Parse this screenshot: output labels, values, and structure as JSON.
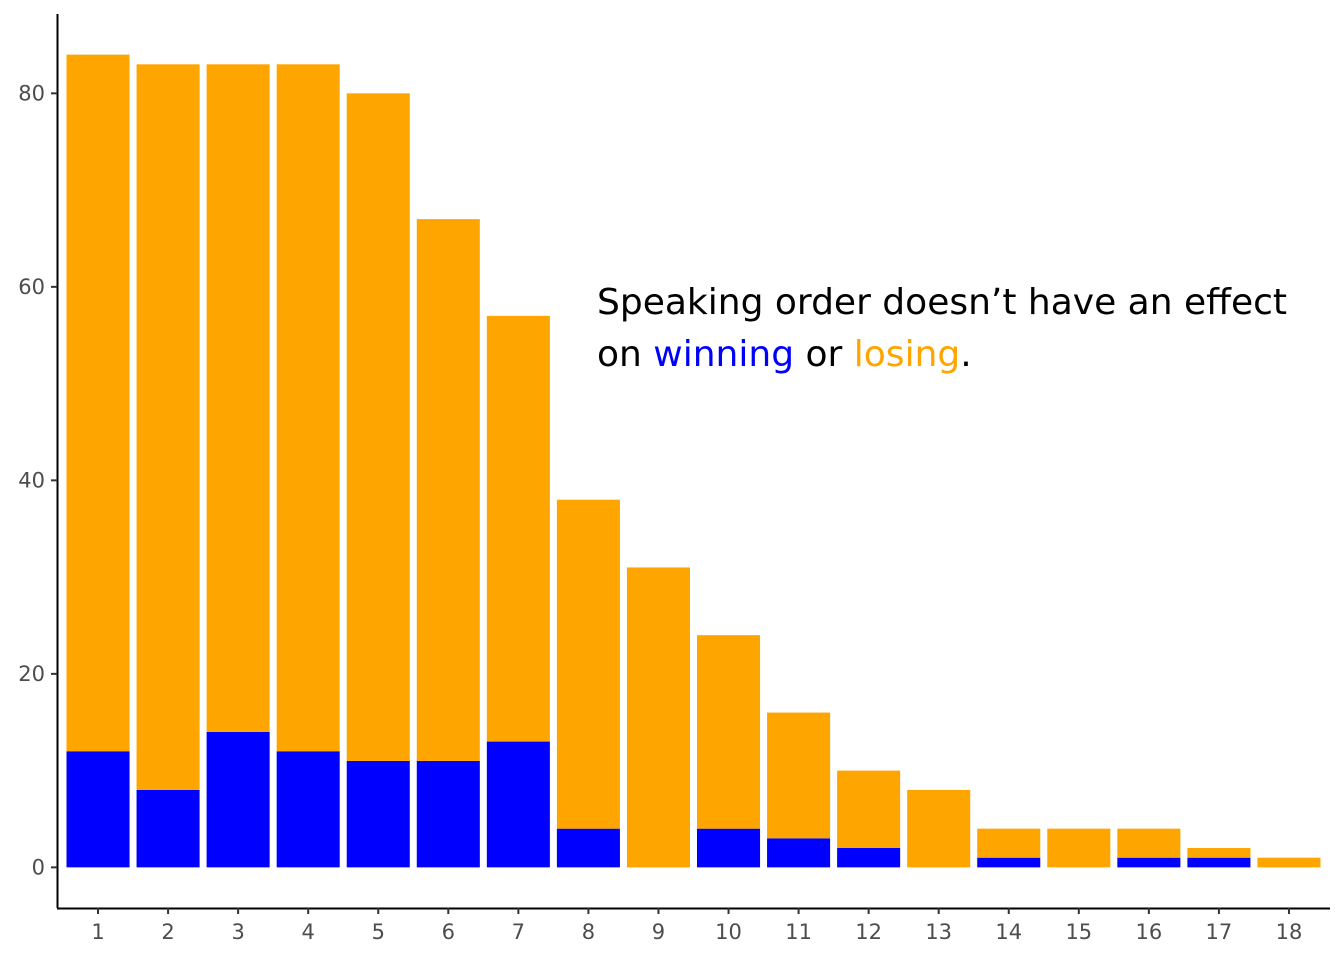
{
  "chart_data": {
    "type": "bar",
    "stacked": true,
    "categories": [
      "1",
      "2",
      "3",
      "4",
      "5",
      "6",
      "7",
      "8",
      "9",
      "10",
      "11",
      "12",
      "13",
      "14",
      "15",
      "16",
      "17",
      "18"
    ],
    "series": [
      {
        "key": "winning",
        "color": "#0000ff",
        "values": [
          12,
          8,
          14,
          12,
          11,
          11,
          13,
          4,
          0,
          4,
          3,
          2,
          0,
          1,
          0,
          1,
          1,
          0
        ]
      },
      {
        "key": "losing",
        "color": "#ffa500",
        "values": [
          72,
          75,
          69,
          71,
          69,
          56,
          44,
          34,
          31,
          20,
          13,
          8,
          8,
          3,
          4,
          3,
          1,
          1
        ]
      }
    ],
    "totals": [
      84,
      83,
      83,
      83,
      80,
      67,
      57,
      38,
      31,
      24,
      16,
      10,
      8,
      4,
      4,
      4,
      2,
      1
    ],
    "ylim": [
      -4.2,
      88.2
    ],
    "yticks": [
      0,
      20,
      40,
      60,
      80
    ],
    "grid": false,
    "legend": "none",
    "title": "",
    "xlabel": "",
    "ylabel": "",
    "annotation": {
      "line1": "Speaking order doesn’t have an effect",
      "line2_prefix": "on",
      "winning_word": "winning",
      "connector": "or",
      "losing_word": "losing",
      "end_punct": ".",
      "winning_color": "#0000ff",
      "losing_color": "#ffa500"
    }
  }
}
